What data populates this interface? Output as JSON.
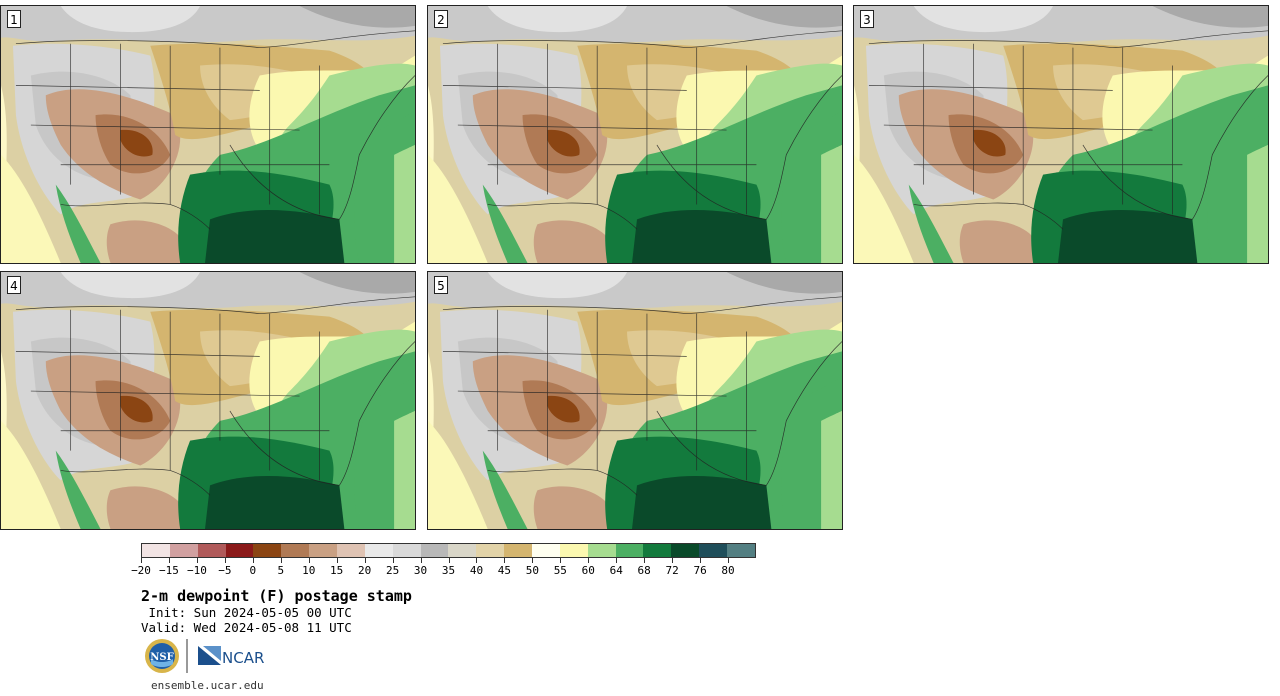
{
  "panels": [
    {
      "label": "1"
    },
    {
      "label": "2"
    },
    {
      "label": "3"
    },
    {
      "label": "4"
    },
    {
      "label": "5"
    }
  ],
  "colorbar": {
    "colors": [
      "#f2e4e4",
      "#d1a0a0",
      "#b05a5a",
      "#8b1a1a",
      "#8b4513",
      "#b07a55",
      "#c9a083",
      "#dfc3b3",
      "#e9e9e9",
      "#d9d9d9",
      "#b8b8b8",
      "#d9d6c8",
      "#e2d3a8",
      "#d4b56f",
      "#fffff0",
      "#fbf8b0",
      "#a6dc90",
      "#4caf63",
      "#137a3d",
      "#0a4a2a",
      "#1f4e5a",
      "#537f82"
    ],
    "ticks": [
      "-20",
      "-15",
      "-10",
      "-5",
      "0",
      "5",
      "10",
      "15",
      "20",
      "25",
      "30",
      "35",
      "40",
      "45",
      "50",
      "55",
      "60",
      "64",
      "68",
      "72",
      "76",
      "80"
    ]
  },
  "title": "2-m dewpoint (F) postage stamp",
  "init": " Init: Sun 2024-05-05 00 UTC",
  "valid": "Valid: Wed 2024-05-08 11 UTC",
  "logos": {
    "nsf": "NSF",
    "ncar": "NCAR"
  },
  "site": "ensemble.ucar.edu"
}
